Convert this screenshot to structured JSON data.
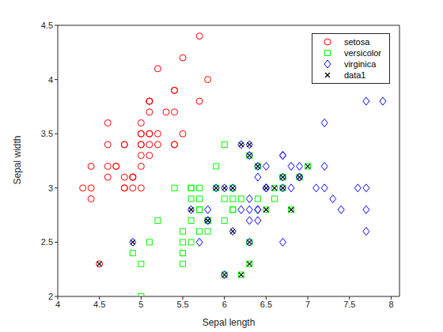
{
  "chart_data": {
    "type": "scatter",
    "x_label": "Sepal length",
    "y_label": "Sepal width",
    "xlim": [
      4,
      8.1
    ],
    "ylim": [
      2,
      4.5
    ],
    "xticks": [
      4,
      4.5,
      5,
      5.5,
      6,
      6.5,
      7,
      7.5,
      8
    ],
    "yticks": [
      2,
      2.5,
      3,
      3.5,
      4,
      4.5
    ],
    "legend": "upper right",
    "series": [
      {
        "name": "setosa",
        "color": "#ff0000",
        "marker": "circle",
        "x": [
          5.1,
          4.9,
          4.7,
          4.6,
          5.0,
          5.4,
          4.6,
          5.0,
          4.4,
          4.9,
          5.4,
          4.8,
          4.8,
          4.3,
          5.8,
          5.7,
          5.4,
          5.1,
          5.7,
          5.1,
          5.4,
          5.1,
          4.6,
          5.1,
          4.8,
          5.0,
          5.0,
          5.2,
          5.2,
          4.7,
          4.8,
          5.4,
          5.2,
          5.5,
          4.9,
          5.0,
          5.5,
          4.9,
          4.4,
          5.1,
          5.0,
          4.5,
          4.4,
          5.0,
          5.1,
          4.8,
          5.1,
          4.6,
          5.3,
          5.0
        ],
        "y": [
          3.5,
          3.0,
          3.2,
          3.1,
          3.6,
          3.9,
          3.4,
          3.4,
          2.9,
          3.1,
          3.7,
          3.4,
          3.0,
          3.0,
          4.0,
          4.4,
          3.9,
          3.5,
          3.8,
          3.8,
          3.4,
          3.7,
          3.6,
          3.3,
          3.4,
          3.0,
          3.4,
          3.5,
          3.4,
          3.2,
          3.1,
          3.4,
          4.1,
          4.2,
          3.1,
          3.2,
          3.5,
          3.1,
          3.0,
          3.4,
          3.5,
          2.3,
          3.2,
          3.5,
          3.8,
          3.0,
          3.8,
          3.2,
          3.7,
          3.3
        ]
      },
      {
        "name": "versicolor",
        "color": "#00ff00",
        "marker": "square",
        "x": [
          7.0,
          6.4,
          6.9,
          5.5,
          6.5,
          5.7,
          6.3,
          4.9,
          6.6,
          5.2,
          5.0,
          5.9,
          6.0,
          6.1,
          5.6,
          6.7,
          5.6,
          5.8,
          6.2,
          5.6,
          5.9,
          6.1,
          6.3,
          6.1,
          6.4,
          6.6,
          6.8,
          6.7,
          6.0,
          5.7,
          5.5,
          5.5,
          5.8,
          6.0,
          5.4,
          6.0,
          6.7,
          6.3,
          5.6,
          5.5,
          5.5,
          6.1,
          5.8,
          5.0,
          5.6,
          5.7,
          5.7,
          6.2,
          5.1,
          5.7
        ],
        "y": [
          3.2,
          3.2,
          3.1,
          2.3,
          2.8,
          2.8,
          3.3,
          2.4,
          2.9,
          2.7,
          2.0,
          3.0,
          2.2,
          2.9,
          2.9,
          3.1,
          3.0,
          2.7,
          2.2,
          2.5,
          3.2,
          2.8,
          2.5,
          2.8,
          2.9,
          3.0,
          2.8,
          3.0,
          2.9,
          2.6,
          2.4,
          2.4,
          2.7,
          2.7,
          3.0,
          3.4,
          3.1,
          2.3,
          3.0,
          2.5,
          2.6,
          3.0,
          2.6,
          2.3,
          2.7,
          3.0,
          2.9,
          2.9,
          2.5,
          2.8
        ]
      },
      {
        "name": "virginica",
        "color": "#0000ff",
        "marker": "diamond",
        "x": [
          6.3,
          5.8,
          7.1,
          6.3,
          6.5,
          7.6,
          4.9,
          7.3,
          6.7,
          7.2,
          6.5,
          6.4,
          6.8,
          5.7,
          5.8,
          6.4,
          6.5,
          7.7,
          7.7,
          6.0,
          6.9,
          5.6,
          7.7,
          6.3,
          6.7,
          7.2,
          6.2,
          6.1,
          6.4,
          7.2,
          7.4,
          7.9,
          6.4,
          6.3,
          6.1,
          7.7,
          6.3,
          6.4,
          6.0,
          6.9,
          6.7,
          6.9,
          5.8,
          6.8,
          6.7,
          6.7,
          6.3,
          6.5,
          6.2,
          5.9
        ],
        "y": [
          3.3,
          2.7,
          3.0,
          2.9,
          3.0,
          3.0,
          2.5,
          2.9,
          2.5,
          3.6,
          3.2,
          2.7,
          3.0,
          2.5,
          2.8,
          3.2,
          3.0,
          3.8,
          2.6,
          2.2,
          3.2,
          2.8,
          2.8,
          2.7,
          3.3,
          3.2,
          2.8,
          3.0,
          2.8,
          3.0,
          2.8,
          3.8,
          2.8,
          2.8,
          2.6,
          3.0,
          3.4,
          3.1,
          3.0,
          3.1,
          3.1,
          3.1,
          2.7,
          3.2,
          3.3,
          3.0,
          2.5,
          3.0,
          3.4,
          3.0
        ]
      },
      {
        "name": "data1",
        "color": "#000000",
        "marker": "x",
        "x": [
          4.5,
          4.9,
          5.6,
          5.8,
          6.0,
          5.9,
          6.0,
          6.1,
          6.1,
          6.2,
          6.2,
          6.3,
          6.3,
          6.3,
          6.3,
          6.4,
          6.5,
          6.5,
          6.6,
          6.7,
          6.7,
          6.8,
          6.9,
          7.0
        ],
        "y": [
          2.3,
          2.5,
          2.8,
          2.7,
          2.2,
          3.0,
          3.0,
          3.0,
          2.6,
          2.2,
          3.4,
          3.4,
          3.3,
          2.5,
          2.3,
          3.2,
          2.8,
          3.0,
          3.0,
          3.1,
          3.0,
          2.8,
          3.1,
          3.2
        ]
      }
    ]
  }
}
